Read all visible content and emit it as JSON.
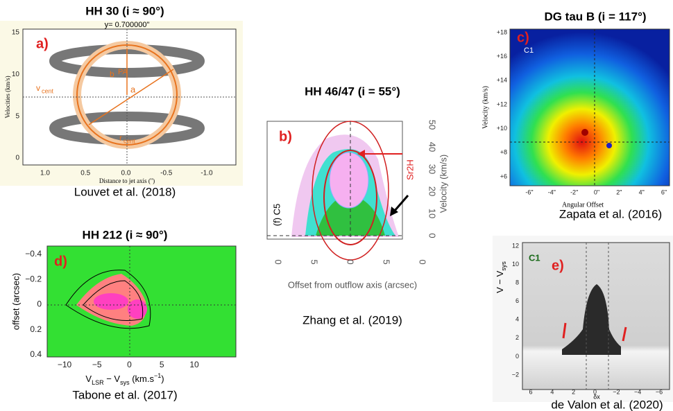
{
  "panels": [
    {
      "title": "HH 30 (i ≈ 90°)",
      "label": "a)",
      "caption": "Louvet et al. (2018)",
      "plot_title": "y= 0.700000\"",
      "x_axis_label": "Distance to jet axis ('')",
      "y_axis_label": "Velocities (km/s)",
      "x_ticks": [
        "1.0",
        "0.5",
        "0.0",
        "-0.5",
        "-1.0"
      ],
      "y_ticks": [
        "0",
        "5",
        "10",
        "15"
      ],
      "annotations": [
        "v",
        "cent",
        "r",
        "cent",
        "b",
        "PA",
        "a"
      ]
    },
    {
      "title": "HH 46/47 (i = 55°)",
      "label": "b)",
      "caption": "Zhang et al. (2019)",
      "x_axis_label": "Offset from outflow axis (arcsec)",
      "y_axis_label": "Velocity (km/s)",
      "x_ticks": [
        "0",
        "5",
        "0",
        "5",
        "0"
      ],
      "y_ticks": [
        "0",
        "10",
        "20",
        "30",
        "40",
        "50"
      ],
      "annotations": [
        "Sr2H",
        "(f) C5"
      ]
    },
    {
      "title": "DG tau B (i = 117°)",
      "label": "c)",
      "sublabel": "C1",
      "caption": "Zapata et al. (2016)",
      "x_axis_label": "Angular Offset",
      "y_axis_label": "Velocity (km/s)",
      "x_ticks": [
        "-6\"",
        "-4\"",
        "-2\"",
        "0\"",
        "2\"",
        "4\"",
        "6\""
      ],
      "y_ticks": [
        "+6",
        "+8",
        "+10",
        "+12",
        "+14",
        "+16",
        "+18"
      ]
    },
    {
      "title": "HH 212 (i ≈ 90°)",
      "label": "d)",
      "caption": "Tabone et al. (2017)",
      "x_axis_label": [
        "V",
        "LSR",
        " − V",
        "sys",
        " (km.s",
        "−1",
        ")"
      ],
      "y_axis_label": "offset (arcsec)",
      "x_ticks": [
        "−10",
        "−5",
        "0",
        "5",
        "10"
      ],
      "y_ticks": [
        "−0.4",
        "−0.2",
        "0",
        "0.2",
        "0.4"
      ]
    },
    {
      "label": "e)",
      "sublabel": "C1",
      "caption": "de Valon et al. (2020)",
      "x_axis_label": "δx",
      "y_axis_label": [
        "V − V",
        "sys"
      ],
      "x_ticks": [
        "6",
        "4",
        "2",
        "0",
        "−2",
        "−4",
        "−6"
      ],
      "y_ticks": [
        "−2",
        "0",
        "2",
        "4",
        "6",
        "8",
        "10",
        "12"
      ]
    }
  ]
}
